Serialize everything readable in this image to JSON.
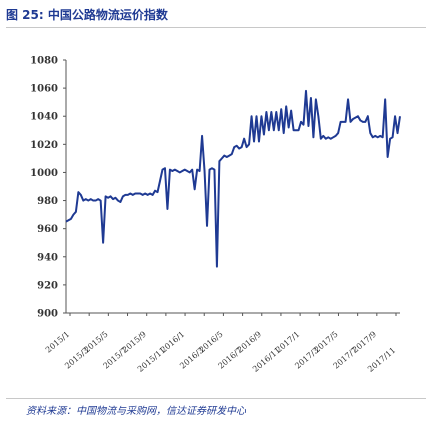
{
  "header": {
    "title": "图 25: 中国公路物流运价指数"
  },
  "footer": {
    "source": "资料来源：中国物流与采购网，信达证券研发中心"
  },
  "colors": {
    "line": "#1f3a93",
    "title": "#1f3a93",
    "axis": "#555555"
  },
  "chart_data": {
    "type": "line",
    "title": "",
    "xlabel": "",
    "ylabel": "",
    "ylim": [
      900,
      1080
    ],
    "yticks": [
      900,
      920,
      940,
      960,
      980,
      1000,
      1020,
      1040,
      1060,
      1080
    ],
    "grid": false,
    "legend": "none",
    "x_tick_labels": [
      "2015/1",
      "2015/3",
      "2015/5",
      "2015/7",
      "2015/9",
      "2015/11",
      "2016/1",
      "2016/3",
      "2016/5",
      "2016/7",
      "2016/9",
      "2016/11",
      "2017/1",
      "2017/3",
      "2017/5",
      "2017/7",
      "2017/9",
      "2017/11"
    ],
    "series": [
      {
        "name": "",
        "values": [
          965,
          966,
          967,
          970,
          972,
          986,
          984,
          980,
          981,
          980,
          981,
          980,
          980,
          981,
          980,
          950,
          983,
          982,
          983,
          981,
          982,
          980,
          979,
          983,
          984,
          984,
          985,
          984,
          985,
          985,
          985,
          984,
          985,
          984,
          985,
          984,
          987,
          986,
          994,
          1002,
          1003,
          974,
          1002,
          1001,
          1002,
          1001,
          1000,
          1001,
          1002,
          1001,
          1000,
          1002,
          988,
          1002,
          1001,
          1026,
          1001,
          962,
          1002,
          1003,
          1002,
          933,
          1008,
          1010,
          1012,
          1011,
          1012,
          1013,
          1018,
          1019,
          1017,
          1018,
          1024,
          1018,
          1020,
          1040,
          1022,
          1040,
          1022,
          1040,
          1027,
          1043,
          1030,
          1043,
          1030,
          1043,
          1030,
          1045,
          1028,
          1047,
          1032,
          1044,
          1030,
          1030,
          1030,
          1036,
          1034,
          1058,
          1033,
          1053,
          1025,
          1052,
          1040,
          1024,
          1026,
          1024,
          1025,
          1024,
          1025,
          1026,
          1028,
          1036,
          1036,
          1036,
          1052,
          1036,
          1038,
          1039,
          1040,
          1037,
          1036,
          1036,
          1040,
          1028,
          1025,
          1026,
          1025,
          1026,
          1025,
          1052,
          1011,
          1024,
          1025,
          1040,
          1028,
          1040
        ]
      }
    ]
  }
}
